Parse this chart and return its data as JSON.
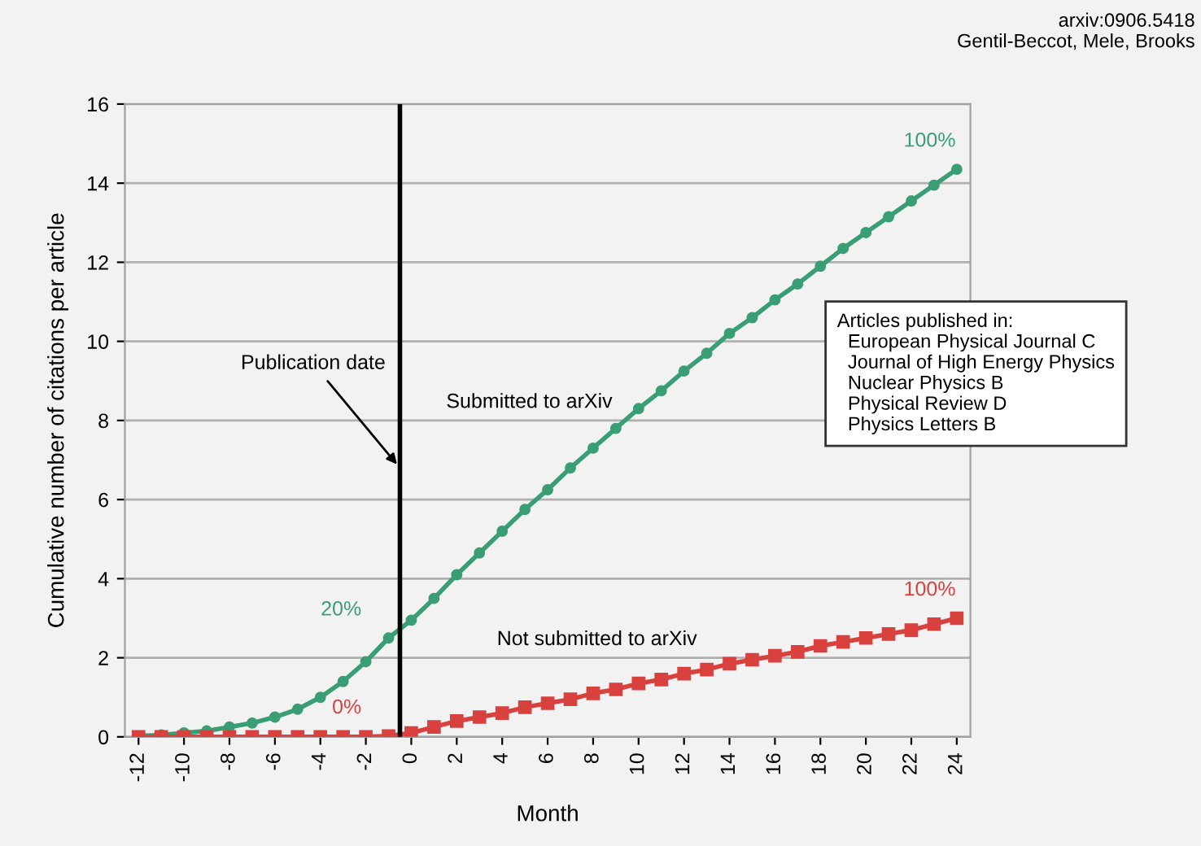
{
  "chart_data": {
    "type": "line",
    "xlabel": "Month",
    "ylabel": "Cumulative number of citations per article",
    "x": [
      -12,
      -11,
      -10,
      -9,
      -8,
      -7,
      -6,
      -5,
      -4,
      -3,
      -2,
      -1,
      0,
      1,
      2,
      3,
      4,
      5,
      6,
      7,
      8,
      9,
      10,
      11,
      12,
      13,
      14,
      15,
      16,
      17,
      18,
      19,
      20,
      21,
      22,
      23,
      24
    ],
    "series": [
      {
        "name": "Submitted to arXiv",
        "color": "#3a9e74",
        "marker": "circle",
        "values": [
          0.02,
          0.05,
          0.1,
          0.15,
          0.25,
          0.35,
          0.5,
          0.7,
          1.0,
          1.4,
          1.9,
          2.5,
          2.95,
          3.5,
          4.1,
          4.65,
          5.2,
          5.75,
          6.25,
          6.8,
          7.3,
          7.8,
          8.3,
          8.75,
          9.25,
          9.7,
          10.2,
          10.6,
          11.05,
          11.45,
          11.9,
          12.35,
          12.75,
          13.15,
          13.55,
          13.95,
          14.35
        ]
      },
      {
        "name": "Not submitted to arXiv",
        "color": "#d9413f",
        "marker": "square",
        "values": [
          0,
          0,
          0,
          0,
          0,
          0,
          0,
          0,
          0,
          0,
          0,
          0.02,
          0.1,
          0.25,
          0.4,
          0.5,
          0.6,
          0.75,
          0.85,
          0.95,
          1.1,
          1.2,
          1.35,
          1.45,
          1.6,
          1.7,
          1.85,
          1.95,
          2.05,
          2.15,
          2.3,
          2.4,
          2.5,
          2.6,
          2.7,
          2.85,
          3.0
        ]
      }
    ],
    "xlim": [
      -12.6,
      24.6
    ],
    "xticks": [
      -12,
      -10,
      -8,
      -6,
      -4,
      -2,
      0,
      2,
      4,
      6,
      8,
      10,
      12,
      14,
      16,
      18,
      20,
      22,
      24
    ],
    "ylim": [
      0,
      16
    ],
    "yticks": [
      0,
      2,
      4,
      6,
      8,
      10,
      12,
      14,
      16
    ],
    "grid": "y",
    "legend": false,
    "line_style": "solid",
    "ref_lines": [
      {
        "axis": "x",
        "value": -0.5,
        "label": "Publication date",
        "color": "#000000"
      }
    ],
    "annotations": [
      "20%",
      "0%",
      "100%",
      "100%",
      "Articles published in:\n  European Physical Journal C\n  Journal of High Energy Physics\n  Nuclear Physics B\n  Physical Review D\n  Physics Letters B",
      "arxiv:0906.5418\nGentil-Beccot, Mele, Brooks"
    ]
  }
}
